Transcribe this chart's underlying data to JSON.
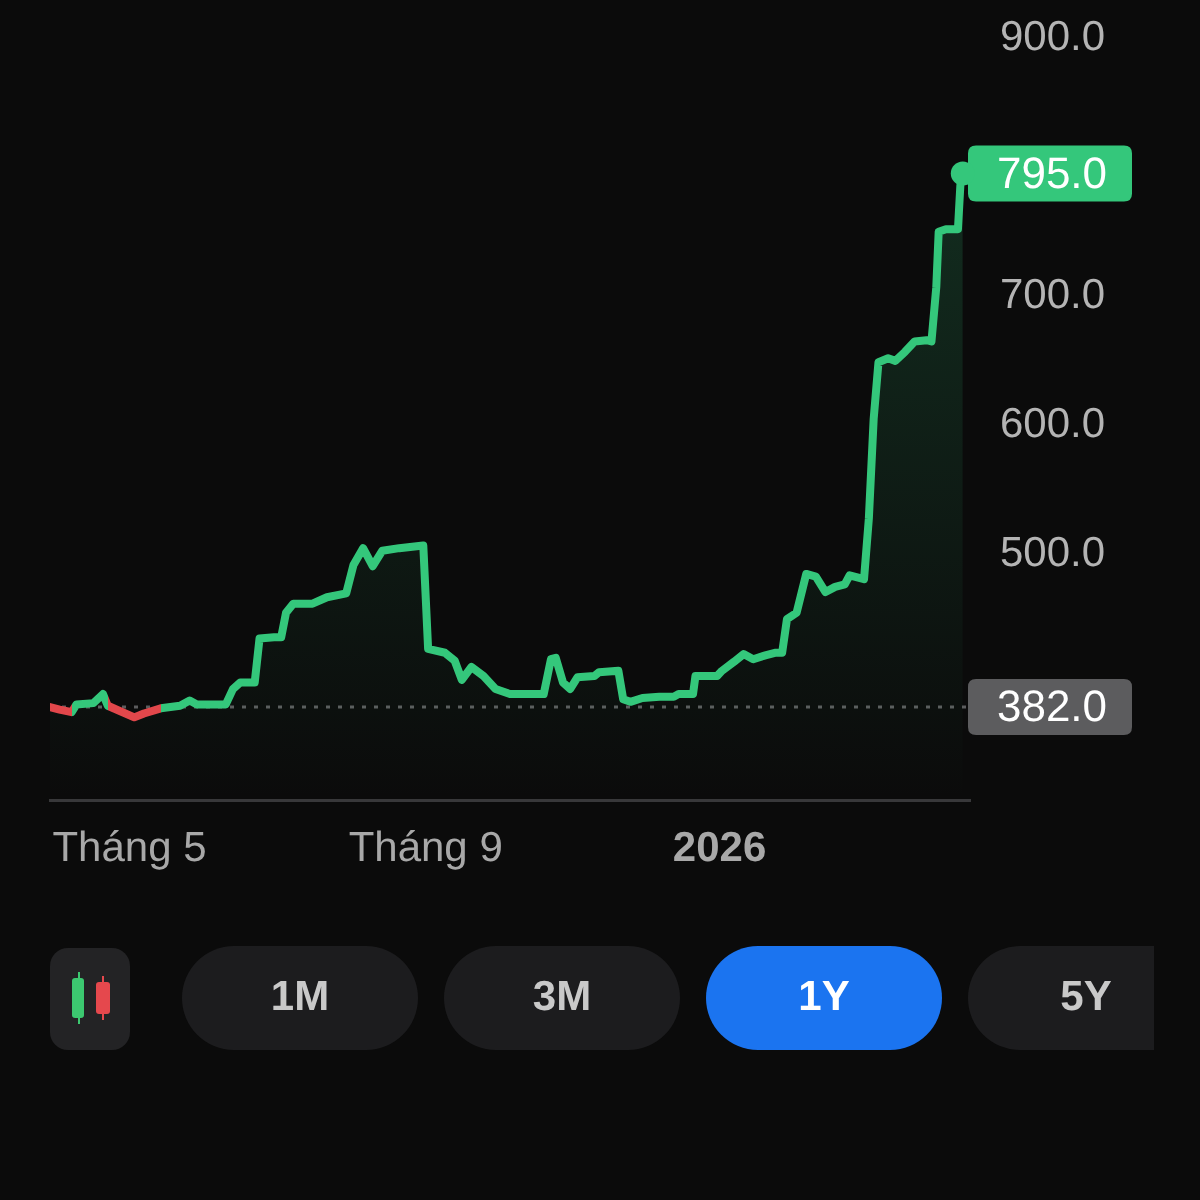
{
  "chart_data": {
    "type": "area",
    "x": [
      "2025-03-29",
      "2025-04-02",
      "2025-04-07",
      "2025-04-09",
      "2025-04-16",
      "2025-04-20",
      "2025-04-22",
      "2025-05-03",
      "2025-05-07",
      "2025-05-14",
      "2025-05-22",
      "2025-05-26",
      "2025-05-29",
      "2025-06-10",
      "2025-06-13",
      "2025-06-16",
      "2025-06-22",
      "2025-06-24",
      "2025-06-30",
      "2025-07-03",
      "2025-07-05",
      "2025-07-08",
      "2025-07-16",
      "2025-07-22",
      "2025-07-30",
      "2025-08-02",
      "2025-08-06",
      "2025-08-10",
      "2025-08-14",
      "2025-08-21",
      "2025-08-31",
      "2025-09-02",
      "2025-09-09",
      "2025-09-13",
      "2025-09-16",
      "2025-09-20",
      "2025-09-25",
      "2025-09-30",
      "2025-10-06",
      "2025-10-20",
      "2025-10-23",
      "2025-10-25",
      "2025-10-28",
      "2025-10-31",
      "2025-11-03",
      "2025-11-10",
      "2025-11-12",
      "2025-11-20",
      "2025-11-22",
      "2025-11-25",
      "2025-11-30",
      "2025-12-07",
      "2025-12-13",
      "2025-12-15",
      "2025-12-21",
      "2025-12-22",
      "2025-12-31",
      "2026-01-02",
      "2026-01-07",
      "2026-01-11",
      "2026-01-15",
      "2026-01-20",
      "2026-01-24",
      "2026-01-27",
      "2026-01-29",
      "2026-02-02",
      "2026-02-06",
      "2026-02-10",
      "2026-02-14",
      "2026-02-18",
      "2026-02-22",
      "2026-02-24",
      "2026-03-02",
      "2026-03-04",
      "2026-03-06",
      "2026-03-08",
      "2026-03-12",
      "2026-03-15",
      "2026-03-19",
      "2026-03-23",
      "2026-03-28",
      "2026-03-30",
      "2026-04-01",
      "2026-04-02",
      "2026-04-05",
      "2026-04-10",
      "2026-04-11",
      "2026-04-12"
    ],
    "series": [
      {
        "color": "#34c77b",
        "colors": [
          "#34c77b",
          "#e2474b",
          "#e2474b",
          "#34c77b",
          "#34c77b",
          "#34c77b",
          "#34c77b",
          "#e2474b",
          "#e2474b",
          "#e2474b",
          "#34c77b",
          "#34c77b",
          "#34c77b",
          "#34c77b",
          "#34c77b",
          "#34c77b",
          "#34c77b",
          "#34c77b",
          "#34c77b",
          "#34c77b",
          "#34c77b",
          "#34c77b",
          "#34c77b",
          "#34c77b",
          "#34c77b",
          "#34c77b",
          "#34c77b",
          "#34c77b",
          "#34c77b",
          "#34c77b",
          "#34c77b",
          "#34c77b",
          "#34c77b",
          "#34c77b",
          "#34c77b",
          "#34c77b",
          "#34c77b",
          "#34c77b",
          "#34c77b",
          "#34c77b",
          "#34c77b",
          "#34c77b",
          "#34c77b",
          "#34c77b",
          "#34c77b",
          "#34c77b",
          "#34c77b",
          "#34c77b",
          "#34c77b",
          "#34c77b",
          "#34c77b",
          "#34c77b",
          "#34c77b",
          "#34c77b",
          "#34c77b",
          "#34c77b",
          "#34c77b",
          "#34c77b",
          "#34c77b",
          "#34c77b",
          "#34c77b",
          "#34c77b",
          "#34c77b",
          "#34c77b",
          "#34c77b",
          "#34c77b",
          "#34c77b",
          "#34c77b",
          "#34c77b",
          "#34c77b",
          "#34c77b",
          "#34c77b",
          "#34c77b",
          "#34c77b",
          "#34c77b",
          "#34c77b",
          "#34c77b",
          "#34c77b",
          "#34c77b",
          "#34c77b",
          "#34c77b",
          "#34c77b",
          "#34c77b",
          "#34c77b",
          "#34c77b",
          "#34c77b",
          "#34c77b",
          "#34c77b"
        ],
        "values": [
          382,
          380,
          378,
          384,
          385,
          392,
          383,
          374,
          377,
          381,
          383,
          387,
          384,
          384,
          396,
          401,
          401,
          435,
          436,
          436,
          455,
          462,
          462,
          467,
          470,
          492,
          505,
          491,
          503,
          505,
          507,
          427,
          424,
          418,
          403,
          413,
          406,
          396,
          392,
          392,
          419,
          420,
          401,
          396,
          405,
          406,
          409,
          410,
          388,
          386,
          389,
          390,
          390,
          392,
          392,
          406,
          406,
          410,
          417,
          423,
          419,
          422,
          424,
          424,
          450,
          455,
          485,
          483,
          471,
          475,
          477,
          484,
          481,
          528,
          605,
          649,
          652,
          650,
          657,
          665,
          666,
          665,
          707,
          750,
          752,
          752,
          786,
          795
        ]
      }
    ],
    "xlim": [
      "2025-03-29",
      "2026-04-15"
    ],
    "xticks": [
      {
        "value": "2025-05-01",
        "label": "Tháng 5"
      },
      {
        "value": "2025-09-01",
        "label": "Tháng 9"
      },
      {
        "value": "2026-01-01",
        "label": "2026"
      }
    ],
    "ylim": [
      310,
      900
    ],
    "yticks": [
      {
        "value": 500,
        "label": "500.0"
      },
      {
        "value": 600,
        "label": "600.0"
      },
      {
        "value": 700,
        "label": "700.0"
      },
      {
        "value": 900,
        "label": "900.0"
      }
    ],
    "ref_lines": [
      {
        "axis": "y",
        "value": 382,
        "label": "382.0",
        "color": "#5c5c5e",
        "line_style": "dotted"
      }
    ],
    "annotations": [
      {
        "text": "795.0",
        "x": "2026-04-12",
        "y": 795
      },
      "1M",
      "3M",
      "1Y",
      "5Y"
    ],
    "grid": false,
    "legend": false,
    "marker": "none",
    "line_style": "solid"
  }
}
